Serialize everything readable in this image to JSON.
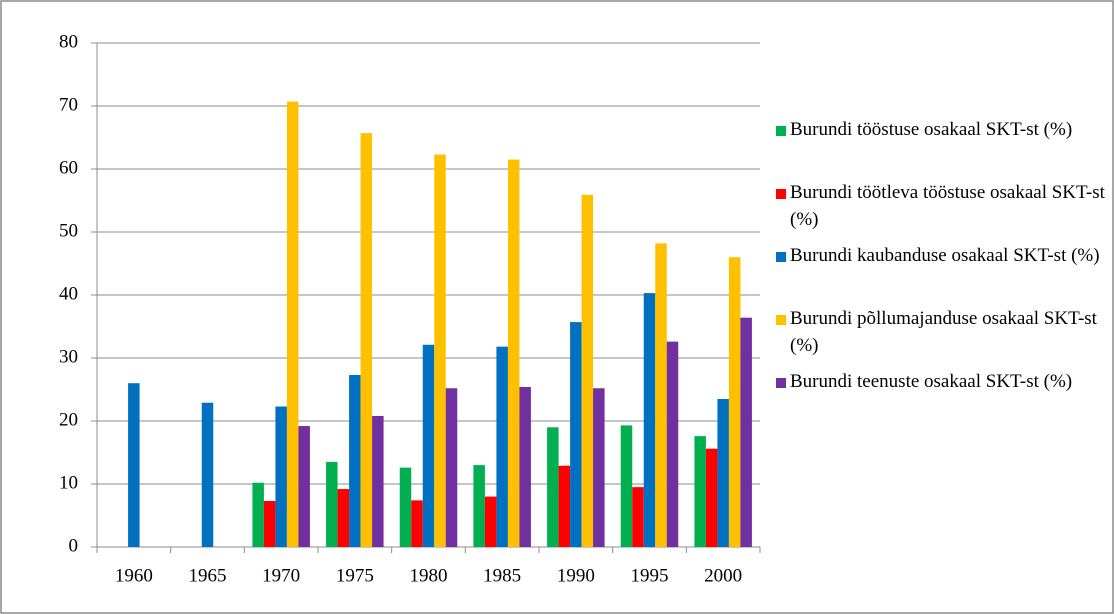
{
  "chart_data": {
    "type": "bar",
    "categories": [
      "1960",
      "1965",
      "1970",
      "1975",
      "1980",
      "1985",
      "1990",
      "1995",
      "2000"
    ],
    "series": [
      {
        "name": "Burundi tööstuse osakaal SKT-st (%)",
        "color": "#00b050",
        "values": [
          null,
          null,
          10.2,
          13.5,
          12.6,
          13,
          19,
          19.3,
          17.6
        ]
      },
      {
        "name": "Burundi töötleva tööstuse osakaal SKT-st (%)",
        "color": "#ff0000",
        "values": [
          null,
          null,
          7.3,
          9.2,
          7.4,
          8,
          12.9,
          9.5,
          15.6
        ]
      },
      {
        "name": "Burundi kaubanduse osakaal SKT-st (%)",
        "color": "#0070c0",
        "values": [
          26,
          22.9,
          22.3,
          27.3,
          32.1,
          31.8,
          35.7,
          40.3,
          23.5
        ]
      },
      {
        "name": "Burundi põllumajanduse osakaal SKT-st (%)",
        "color": "#ffc000",
        "values": [
          null,
          null,
          70.7,
          65.7,
          62.3,
          61.5,
          55.9,
          48.2,
          46
        ]
      },
      {
        "name": "Burundi teenuste osakaal SKT-st (%)",
        "color": "#7030a0",
        "values": [
          null,
          null,
          19.2,
          20.8,
          25.2,
          25.4,
          25.2,
          32.6,
          36.4
        ]
      }
    ],
    "ylim": [
      0,
      80
    ],
    "yticks": [
      0,
      10,
      20,
      30,
      40,
      50,
      60,
      70,
      80
    ],
    "grid": true,
    "legend": "right"
  }
}
